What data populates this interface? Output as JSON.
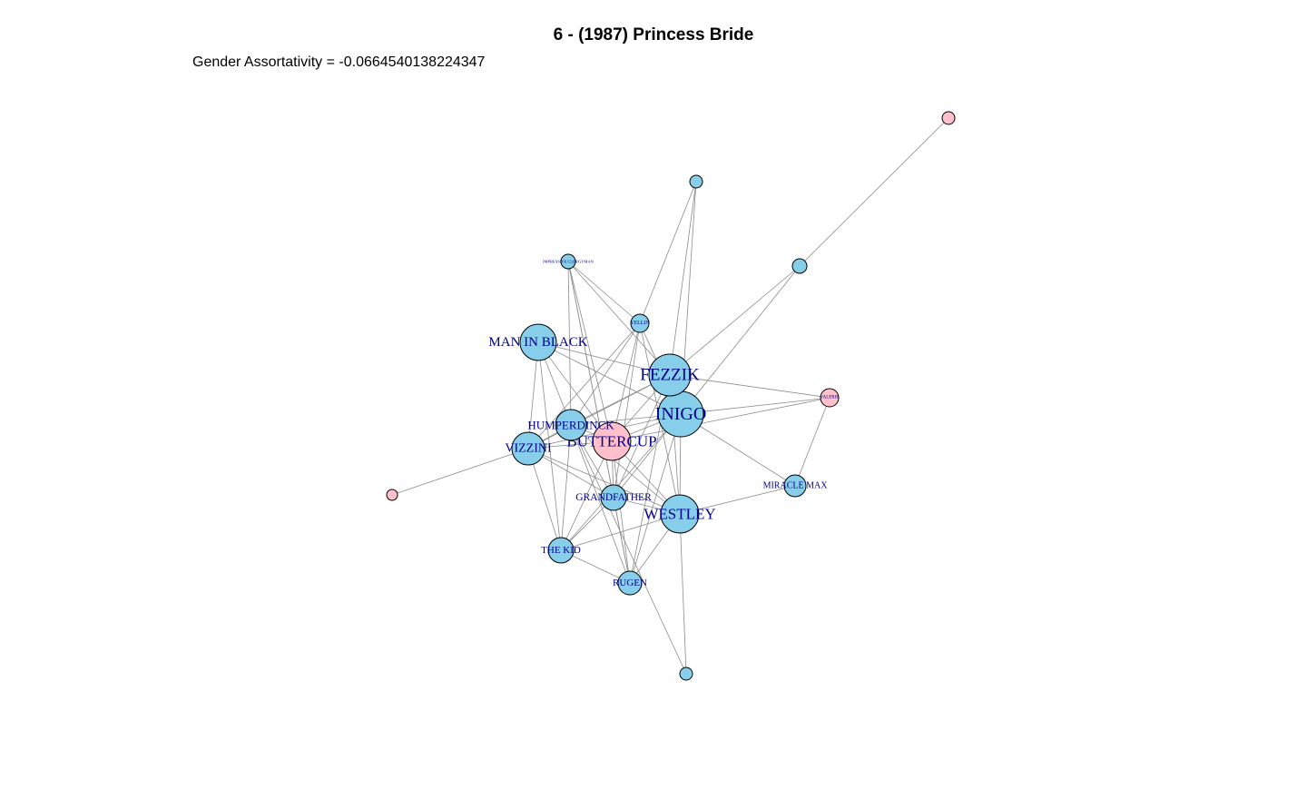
{
  "title": "6 - (1987) Princess Bride",
  "subtitle": "Gender Assortativity = -0.0664540138224347",
  "colors": {
    "male": "#87ceeb",
    "female": "#ffc0cb",
    "edge": "#8c8c8c",
    "label": "#00008b"
  },
  "nodes": [
    {
      "id": "inigo",
      "label": "INIGO",
      "gender": "male"
    },
    {
      "id": "fezzik",
      "label": "FEZZIK",
      "gender": "male"
    },
    {
      "id": "westley",
      "label": "WESTLEY",
      "gender": "male"
    },
    {
      "id": "buttercup",
      "label": "BUTTERCUP",
      "gender": "female"
    },
    {
      "id": "maninblack",
      "label": "MAN IN BLACK",
      "gender": "male"
    },
    {
      "id": "humperdinck",
      "label": "HUMPERDINCK",
      "gender": "male"
    },
    {
      "id": "vizzini",
      "label": "VIZZINI",
      "gender": "male"
    },
    {
      "id": "grandfather",
      "label": "GRANDFATHER",
      "gender": "male"
    },
    {
      "id": "thekid",
      "label": "THE KID",
      "gender": "male"
    },
    {
      "id": "rugen",
      "label": "RUGEN",
      "gender": "male"
    },
    {
      "id": "miraclemax",
      "label": "MIRACLE MAX",
      "gender": "male"
    },
    {
      "id": "yellin",
      "label": "YELLIN",
      "gender": "male"
    },
    {
      "id": "impressive",
      "label": "IMPRESSIVE CLERGYMAN",
      "gender": "male"
    },
    {
      "id": "valerie",
      "label": "VALERIE",
      "gender": "female"
    },
    {
      "id": "top",
      "label": "",
      "gender": "male"
    },
    {
      "id": "right",
      "label": "",
      "gender": "male"
    },
    {
      "id": "farright",
      "label": "",
      "gender": "female"
    },
    {
      "id": "leftf",
      "label": "",
      "gender": "female"
    },
    {
      "id": "bottom",
      "label": "",
      "gender": "male"
    }
  ],
  "edges": [
    [
      "farright",
      "right"
    ],
    [
      "right",
      "inigo"
    ],
    [
      "right",
      "fezzik"
    ],
    [
      "top",
      "fezzik"
    ],
    [
      "top",
      "inigo"
    ],
    [
      "top",
      "yellin"
    ],
    [
      "impressive",
      "buttercup"
    ],
    [
      "impressive",
      "humperdinck"
    ],
    [
      "impressive",
      "yellin"
    ],
    [
      "impressive",
      "grandfather"
    ],
    [
      "impressive",
      "fezzik"
    ],
    [
      "impressive",
      "rugen"
    ],
    [
      "yellin",
      "buttercup"
    ],
    [
      "yellin",
      "humperdinck"
    ],
    [
      "yellin",
      "inigo"
    ],
    [
      "yellin",
      "vizzini"
    ],
    [
      "yellin",
      "grandfather"
    ],
    [
      "yellin",
      "westley"
    ],
    [
      "maninblack",
      "humperdinck"
    ],
    [
      "maninblack",
      "buttercup"
    ],
    [
      "maninblack",
      "vizzini"
    ],
    [
      "maninblack",
      "fezzik"
    ],
    [
      "maninblack",
      "inigo"
    ],
    [
      "maninblack",
      "thekid"
    ],
    [
      "fezzik",
      "inigo"
    ],
    [
      "fezzik",
      "westley"
    ],
    [
      "fezzik",
      "buttercup"
    ],
    [
      "fezzik",
      "humperdinck"
    ],
    [
      "fezzik",
      "vizzini"
    ],
    [
      "fezzik",
      "valerie"
    ],
    [
      "fezzik",
      "grandfather"
    ],
    [
      "fezzik",
      "rugen"
    ],
    [
      "inigo",
      "westley"
    ],
    [
      "inigo",
      "buttercup"
    ],
    [
      "inigo",
      "humperdinck"
    ],
    [
      "inigo",
      "vizzini"
    ],
    [
      "inigo",
      "valerie"
    ],
    [
      "inigo",
      "miraclemax"
    ],
    [
      "inigo",
      "grandfather"
    ],
    [
      "inigo",
      "thekid"
    ],
    [
      "inigo",
      "rugen"
    ],
    [
      "valerie",
      "miraclemax"
    ],
    [
      "valerie",
      "buttercup"
    ],
    [
      "westley",
      "buttercup"
    ],
    [
      "westley",
      "humperdinck"
    ],
    [
      "westley",
      "miraclemax"
    ],
    [
      "westley",
      "grandfather"
    ],
    [
      "westley",
      "thekid"
    ],
    [
      "westley",
      "rugen"
    ],
    [
      "westley",
      "bottom"
    ],
    [
      "westley",
      "vizzini"
    ],
    [
      "buttercup",
      "humperdinck"
    ],
    [
      "buttercup",
      "vizzini"
    ],
    [
      "buttercup",
      "grandfather"
    ],
    [
      "buttercup",
      "thekid"
    ],
    [
      "buttercup",
      "rugen"
    ],
    [
      "humperdinck",
      "vizzini"
    ],
    [
      "humperdinck",
      "grandfather"
    ],
    [
      "humperdinck",
      "thekid"
    ],
    [
      "humperdinck",
      "rugen"
    ],
    [
      "humperdinck",
      "bottom"
    ],
    [
      "vizzini",
      "thekid"
    ],
    [
      "vizzini",
      "leftf"
    ],
    [
      "vizzini",
      "grandfather"
    ],
    [
      "grandfather",
      "thekid"
    ],
    [
      "grandfather",
      "rugen"
    ],
    [
      "thekid",
      "rugen"
    ]
  ]
}
